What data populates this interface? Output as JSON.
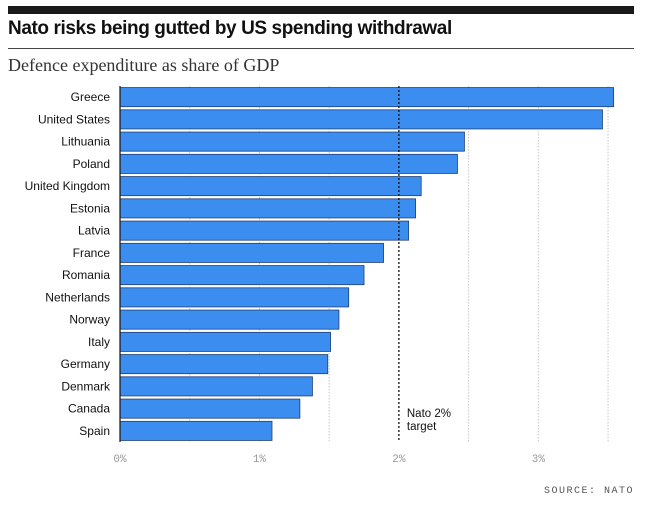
{
  "title": "Nato risks being gutted by US spending withdrawal",
  "subtitle": "Defence expenditure as share of GDP",
  "source": "SOURCE: NATO",
  "colors": {
    "bar": "#3b8df0",
    "bar_stroke": "#1e3f73",
    "grid": "#c8c8c8",
    "target_line": "#111111"
  },
  "chart_data": {
    "type": "bar",
    "orientation": "horizontal",
    "categories": [
      "Greece",
      "United States",
      "Lithuania",
      "Poland",
      "United Kingdom",
      "Estonia",
      "Latvia",
      "France",
      "Romania",
      "Netherlands",
      "Norway",
      "Italy",
      "Germany",
      "Denmark",
      "Canada",
      "Spain"
    ],
    "values": [
      3.54,
      3.46,
      2.47,
      2.42,
      2.16,
      2.12,
      2.07,
      1.89,
      1.75,
      1.64,
      1.57,
      1.51,
      1.49,
      1.38,
      1.29,
      1.09
    ],
    "xlim": [
      0,
      3.6
    ],
    "xticks": [
      0,
      1,
      2,
      3
    ],
    "xtick_labels": [
      "0%",
      "1%",
      "2%",
      "3%"
    ],
    "grid": "vertical",
    "annotations": [
      {
        "type": "vline",
        "x": 2,
        "style": "dotted",
        "label_lines": [
          "Nato 2%",
          "target"
        ]
      }
    ]
  }
}
